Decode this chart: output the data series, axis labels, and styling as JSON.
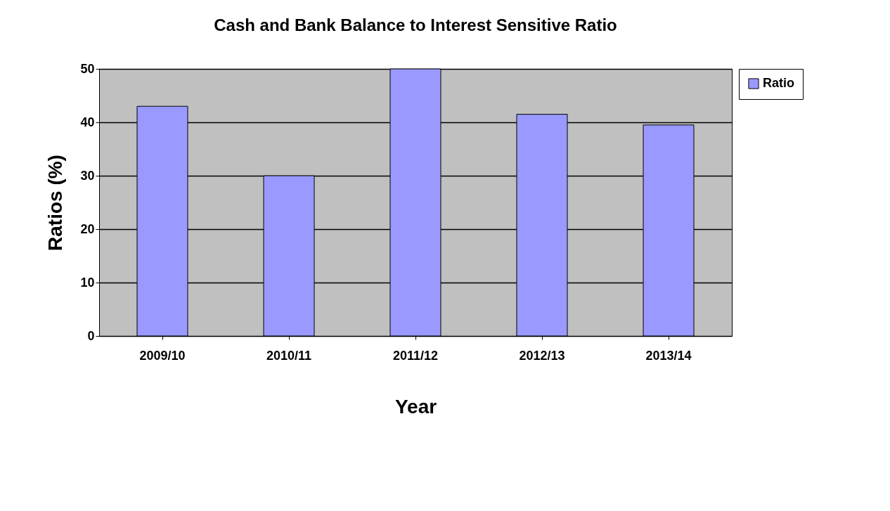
{
  "chart_data": {
    "type": "bar",
    "title": "Cash and Bank Balance to Interest Sensitive Ratio",
    "xlabel": "Year",
    "ylabel": "Ratios (%)",
    "categories": [
      "2009/10",
      "2010/11",
      "2011/12",
      "2012/13",
      "2013/14"
    ],
    "series": [
      {
        "name": "Ratio",
        "color": "#9999ff",
        "values": [
          43,
          30,
          50,
          41.5,
          39.5
        ]
      }
    ],
    "ylim": [
      0,
      50
    ],
    "yticks": [
      0,
      10,
      20,
      30,
      40,
      50
    ],
    "grid": "y",
    "legend": "right"
  }
}
